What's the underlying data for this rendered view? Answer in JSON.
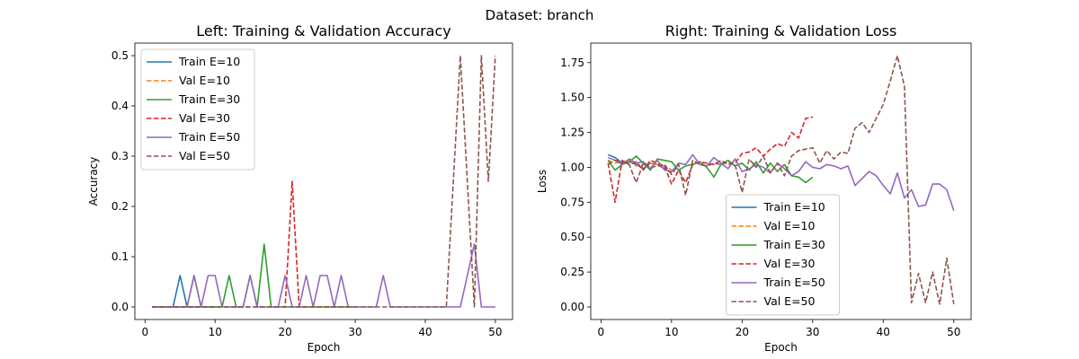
{
  "suptitle": "Dataset: branch",
  "colors": {
    "train10": "#1f77b4",
    "val10": "#ff7f0e",
    "train30": "#2ca02c",
    "val30": "#d62728",
    "train50": "#9467bd",
    "val50": "#8c564b"
  },
  "chart_data": [
    {
      "type": "line",
      "title": "Left: Training & Validation Accuracy",
      "xlabel": "Epoch",
      "ylabel": "Accuracy",
      "xlim": [
        -1.45,
        52.45
      ],
      "ylim": [
        -0.025,
        0.525
      ],
      "xticks": [
        0,
        10,
        20,
        30,
        40,
        50
      ],
      "yticks": [
        0.0,
        0.1,
        0.2,
        0.3,
        0.4,
        0.5
      ],
      "ytick_labels": [
        "0.0",
        "0.1",
        "0.2",
        "0.3",
        "0.4",
        "0.5"
      ],
      "legend_position": "upper-left",
      "series": [
        {
          "name": "Train E=10",
          "color_key": "train10",
          "style": "solid",
          "x": [
            1,
            2,
            3,
            4,
            5,
            6,
            7,
            8,
            9,
            10
          ],
          "values": [
            0,
            0,
            0,
            0,
            0.0625,
            0,
            0,
            0,
            0,
            0
          ]
        },
        {
          "name": "Val E=10",
          "color_key": "val10",
          "style": "dashed",
          "x": [
            1,
            2,
            3,
            4,
            5,
            6,
            7,
            8,
            9,
            10
          ],
          "values": [
            0,
            0,
            0,
            0,
            0,
            0,
            0,
            0,
            0,
            0
          ]
        },
        {
          "name": "Train E=30",
          "color_key": "train30",
          "style": "solid",
          "x": [
            1,
            2,
            3,
            4,
            5,
            6,
            7,
            8,
            9,
            10,
            11,
            12,
            13,
            14,
            15,
            16,
            17,
            18,
            19,
            20,
            21,
            22,
            23,
            24,
            25,
            26,
            27,
            28,
            29,
            30
          ],
          "values": [
            0,
            0,
            0,
            0,
            0,
            0,
            0.0625,
            0,
            0,
            0,
            0,
            0.0625,
            0,
            0,
            0.0625,
            0,
            0.125,
            0,
            0,
            0,
            0,
            0,
            0,
            0,
            0,
            0,
            0,
            0,
            0,
            0
          ]
        },
        {
          "name": "Val E=30",
          "color_key": "val30",
          "style": "dashed",
          "x": [
            1,
            2,
            3,
            4,
            5,
            6,
            7,
            8,
            9,
            10,
            11,
            12,
            13,
            14,
            15,
            16,
            17,
            18,
            19,
            20,
            21,
            22,
            23,
            24,
            25,
            26,
            27,
            28,
            29,
            30
          ],
          "values": [
            0,
            0,
            0,
            0,
            0,
            0,
            0,
            0,
            0,
            0,
            0,
            0,
            0,
            0,
            0,
            0,
            0,
            0,
            0,
            0,
            0.25,
            0,
            0,
            0,
            0,
            0,
            0,
            0,
            0,
            0
          ]
        },
        {
          "name": "Train E=50",
          "color_key": "train50",
          "style": "solid",
          "x": [
            1,
            2,
            3,
            4,
            5,
            6,
            7,
            8,
            9,
            10,
            11,
            12,
            13,
            14,
            15,
            16,
            17,
            18,
            19,
            20,
            21,
            22,
            23,
            24,
            25,
            26,
            27,
            28,
            29,
            30,
            31,
            32,
            33,
            34,
            35,
            36,
            37,
            38,
            39,
            40,
            41,
            42,
            43,
            44,
            45,
            46,
            47,
            48,
            49,
            50
          ],
          "values": [
            0,
            0,
            0,
            0,
            0,
            0,
            0.0625,
            0,
            0.0625,
            0.0625,
            0,
            0,
            0,
            0,
            0.0625,
            0,
            0,
            0,
            0,
            0.0625,
            0,
            0,
            0.0625,
            0,
            0.0625,
            0.0625,
            0,
            0.0625,
            0,
            0,
            0,
            0,
            0,
            0.0625,
            0,
            0,
            0,
            0,
            0,
            0,
            0,
            0,
            0,
            0,
            0,
            0.0625,
            0.125,
            0,
            0,
            0
          ]
        },
        {
          "name": "Val E=50",
          "color_key": "val50",
          "style": "dashed",
          "x": [
            1,
            2,
            3,
            4,
            5,
            6,
            7,
            8,
            9,
            10,
            11,
            12,
            13,
            14,
            15,
            16,
            17,
            18,
            19,
            20,
            21,
            22,
            23,
            24,
            25,
            26,
            27,
            28,
            29,
            30,
            31,
            32,
            33,
            34,
            35,
            36,
            37,
            38,
            39,
            40,
            41,
            42,
            43,
            44,
            45,
            46,
            47,
            48,
            49,
            50
          ],
          "values": [
            0,
            0,
            0,
            0,
            0,
            0,
            0,
            0,
            0,
            0,
            0,
            0,
            0,
            0,
            0,
            0,
            0,
            0,
            0,
            0,
            0,
            0,
            0,
            0,
            0,
            0,
            0,
            0,
            0,
            0,
            0,
            0,
            0,
            0,
            0,
            0,
            0,
            0,
            0,
            0,
            0,
            0,
            0,
            0.25,
            0.5,
            0.25,
            0,
            0.5,
            0.25,
            0.5
          ]
        }
      ]
    },
    {
      "type": "line",
      "title": "Right: Training & Validation Loss",
      "xlabel": "Epoch",
      "ylabel": "Loss",
      "xlim": [
        -1.45,
        52.45
      ],
      "ylim": [
        -0.09,
        1.89
      ],
      "xticks": [
        0,
        10,
        20,
        30,
        40,
        50
      ],
      "yticks": [
        0.0,
        0.25,
        0.5,
        0.75,
        1.0,
        1.25,
        1.5,
        1.75
      ],
      "ytick_labels": [
        "0.00",
        "0.25",
        "0.50",
        "0.75",
        "1.00",
        "1.25",
        "1.50",
        "1.75"
      ],
      "legend_position": "lower-center",
      "series": [
        {
          "name": "Train E=10",
          "color_key": "train10",
          "style": "solid",
          "x": [
            1,
            2,
            3,
            4,
            5,
            6,
            7,
            8,
            9,
            10
          ],
          "values": [
            1.09,
            1.07,
            1.03,
            1.04,
            1.02,
            0.99,
            1.03,
            1.02,
            0.99,
            0.96
          ]
        },
        {
          "name": "Val E=10",
          "color_key": "val10",
          "style": "dashed",
          "x": [
            1,
            2,
            3,
            4,
            5,
            6,
            7,
            8,
            9,
            10
          ],
          "values": [
            1.05,
            1.03,
            1.04,
            1.05,
            1.01,
            1.02,
            1.03,
            1.02,
            1.01,
            0.98
          ]
        },
        {
          "name": "Train E=30",
          "color_key": "train30",
          "style": "solid",
          "x": [
            1,
            2,
            3,
            4,
            5,
            6,
            7,
            8,
            9,
            10,
            11,
            12,
            13,
            14,
            15,
            16,
            17,
            18,
            19,
            20,
            21,
            22,
            23,
            24,
            25,
            26,
            27,
            28,
            29,
            30
          ],
          "values": [
            1.05,
            0.98,
            1.02,
            1.04,
            1.08,
            1.03,
            0.98,
            1.06,
            1.05,
            1.04,
            0.98,
            1.01,
            1.02,
            1.04,
            1.0,
            0.93,
            1.02,
            1.05,
            1.01,
            1.03,
            0.98,
            1.04,
            0.96,
            1.03,
            0.97,
            1.02,
            0.94,
            0.93,
            0.89,
            0.93
          ]
        },
        {
          "name": "Val E=30",
          "color_key": "val30",
          "style": "dashed",
          "x": [
            1,
            2,
            3,
            4,
            5,
            6,
            7,
            8,
            9,
            10,
            11,
            12,
            13,
            14,
            15,
            16,
            17,
            18,
            19,
            20,
            21,
            22,
            23,
            24,
            25,
            26,
            27,
            28,
            29,
            30
          ],
          "values": [
            1.03,
            0.75,
            1.05,
            1.02,
            1.04,
            0.98,
            1.05,
            1.03,
            1.01,
            0.88,
            0.98,
            0.89,
            1.02,
            1.04,
            1.03,
            1.02,
            1.05,
            1.02,
            1.03,
            1.1,
            1.11,
            1.14,
            1.08,
            1.13,
            1.17,
            1.15,
            1.25,
            1.21,
            1.35,
            1.36
          ]
        },
        {
          "name": "Train E=50",
          "color_key": "train50",
          "style": "solid",
          "x": [
            1,
            2,
            3,
            4,
            5,
            6,
            7,
            8,
            9,
            10,
            11,
            12,
            13,
            14,
            15,
            16,
            17,
            18,
            19,
            20,
            21,
            22,
            23,
            24,
            25,
            26,
            27,
            28,
            29,
            30,
            31,
            32,
            33,
            34,
            35,
            36,
            37,
            38,
            39,
            40,
            41,
            42,
            43,
            44,
            45,
            46,
            47,
            48,
            49,
            50
          ],
          "values": [
            1.07,
            1.05,
            1.02,
            1.06,
            1.03,
            1.04,
            0.99,
            1.05,
            0.98,
            0.97,
            1.03,
            1.02,
            1.09,
            1.02,
            1.01,
            1.07,
            1.03,
            0.99,
            1.06,
            0.97,
            0.99,
            1.02,
            1.0,
            0.96,
            1.03,
            0.99,
            0.94,
            0.97,
            1.04,
            1.0,
            0.99,
            1.02,
            1.01,
            0.99,
            1.01,
            0.87,
            0.92,
            0.97,
            0.94,
            0.87,
            0.81,
            0.96,
            0.78,
            0.84,
            0.72,
            0.73,
            0.88,
            0.88,
            0.84,
            0.69
          ]
        },
        {
          "name": "Val E=50",
          "color_key": "val50",
          "style": "dashed",
          "x": [
            1,
            2,
            3,
            4,
            5,
            6,
            7,
            8,
            9,
            10,
            11,
            12,
            13,
            14,
            15,
            16,
            17,
            18,
            19,
            20,
            21,
            22,
            23,
            24,
            25,
            26,
            27,
            28,
            29,
            30,
            31,
            32,
            33,
            34,
            35,
            36,
            37,
            38,
            39,
            40,
            41,
            42,
            43,
            44,
            45,
            46,
            47,
            48,
            49,
            50
          ],
          "values": [
            1.02,
            1.05,
            1.04,
            1.02,
            0.89,
            1.03,
            1.0,
            1.01,
            1.02,
            0.95,
            1.02,
            0.8,
            1.05,
            1.02,
            1.01,
            1.03,
            1.02,
            1.04,
            1.02,
            0.82,
            1.06,
            1.0,
            1.08,
            0.96,
            1.03,
            0.94,
            1.08,
            1.12,
            1.13,
            1.14,
            1.03,
            1.12,
            1.06,
            1.11,
            1.1,
            1.28,
            1.32,
            1.25,
            1.35,
            1.45,
            1.62,
            1.8,
            1.58,
            0.03,
            0.24,
            0.03,
            0.25,
            0.02,
            0.35,
            0.02
          ]
        }
      ]
    }
  ]
}
